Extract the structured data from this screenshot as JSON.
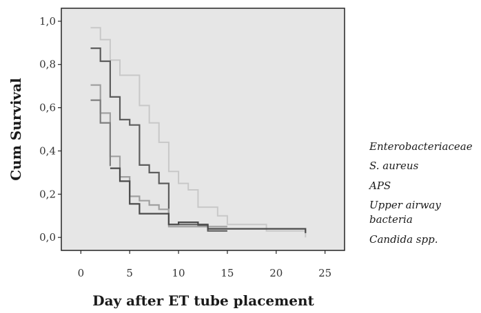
{
  "chart_data": {
    "type": "line",
    "xlabel": "Day after ET tube placement",
    "ylabel": "Cum Survival",
    "xlim": [
      -2,
      27
    ],
    "ylim": [
      -0.06,
      1.06
    ],
    "x_ticks": [
      {
        "value": 0,
        "label": "0"
      },
      {
        "value": 5,
        "label": "5"
      },
      {
        "value": 10,
        "label": "10"
      },
      {
        "value": 15,
        "label": "15"
      },
      {
        "value": 20,
        "label": "20"
      },
      {
        "value": 25,
        "label": "25"
      }
    ],
    "y_ticks": [
      {
        "value": 0.0,
        "label": "0,0"
      },
      {
        "value": 0.2,
        "label": "0,2"
      },
      {
        "value": 0.4,
        "label": "0,4"
      },
      {
        "value": 0.6,
        "label": "0,6"
      },
      {
        "value": 0.8,
        "label": "0,8"
      },
      {
        "value": 1.0,
        "label": "1,0"
      }
    ],
    "grid": false,
    "legend_position": "right",
    "series": [
      {
        "name": "Enterobacteriaceae",
        "color": "#c8c8c8",
        "steps": [
          [
            1,
            0.97
          ],
          [
            2,
            0.915
          ],
          [
            3,
            0.82
          ],
          [
            4,
            0.75
          ],
          [
            6,
            0.61
          ],
          [
            7,
            0.53
          ],
          [
            8,
            0.44
          ],
          [
            9,
            0.305
          ],
          [
            10,
            0.25
          ],
          [
            11,
            0.22
          ],
          [
            12,
            0.14
          ],
          [
            14,
            0.1
          ],
          [
            15,
            0.06
          ],
          [
            19,
            0.03
          ],
          [
            23,
            0.0
          ]
        ]
      },
      {
        "name": "S. aureus",
        "color": "#5c5c5c",
        "steps": [
          [
            1,
            0.875
          ],
          [
            2,
            0.815
          ],
          [
            3,
            0.65
          ],
          [
            4,
            0.545
          ],
          [
            5,
            0.52
          ],
          [
            6,
            0.335
          ],
          [
            7,
            0.3
          ],
          [
            8,
            0.25
          ],
          [
            9,
            0.06
          ],
          [
            12,
            0.055
          ],
          [
            13,
            0.03
          ],
          [
            15,
            0.03
          ]
        ]
      },
      {
        "name": "APS",
        "color": "#a0a0a0",
        "steps": [
          [
            1,
            0.705
          ],
          [
            2,
            0.575
          ],
          [
            3,
            0.375
          ],
          [
            4,
            0.28
          ],
          [
            5,
            0.19
          ],
          [
            6,
            0.17
          ],
          [
            7,
            0.15
          ],
          [
            8,
            0.13
          ],
          [
            9,
            0.05
          ],
          [
            15,
            0.05
          ]
        ]
      },
      {
        "name": "Upper airway bacteria",
        "color": "#7e7e7e",
        "steps": [
          [
            1,
            0.635
          ],
          [
            2,
            0.53
          ],
          [
            3,
            0.33
          ]
        ]
      },
      {
        "name": "Candida spp.",
        "color": "#4a4a4a",
        "steps": [
          [
            3,
            0.32
          ],
          [
            4,
            0.26
          ],
          [
            5,
            0.155
          ],
          [
            6,
            0.11
          ],
          [
            9,
            0.06
          ],
          [
            10,
            0.07
          ],
          [
            12,
            0.06
          ],
          [
            13,
            0.04
          ],
          [
            23,
            0.02
          ]
        ]
      }
    ],
    "legend_entries": [
      {
        "lines": [
          "Enterobacteriaceae"
        ]
      },
      {
        "lines": [
          "S. aureus"
        ]
      },
      {
        "lines": [
          "APS"
        ]
      },
      {
        "lines": [
          "Upper airway",
          "bacteria"
        ]
      },
      {
        "lines": [
          "Candida spp."
        ]
      }
    ]
  }
}
